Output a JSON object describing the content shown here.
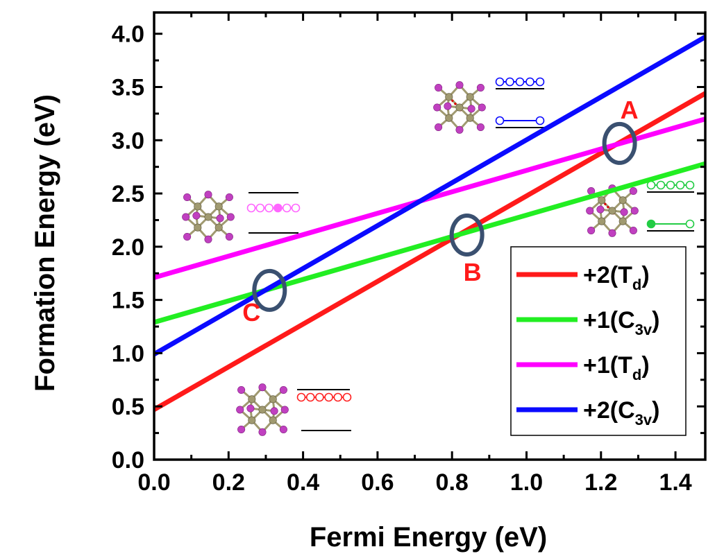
{
  "chart_data": {
    "type": "line",
    "title": "",
    "xlabel": "Fermi Energy (eV)",
    "ylabel": "Formation Energy (eV)",
    "xlim": [
      0.0,
      1.48
    ],
    "ylim": [
      0.0,
      4.2
    ],
    "xticks": [
      "0.0",
      "0.2",
      "0.4",
      "0.6",
      "0.8",
      "1.0",
      "1.2",
      "1.4"
    ],
    "yticks": [
      "0.0",
      "0.5",
      "1.0",
      "1.5",
      "2.0",
      "2.5",
      "3.0",
      "3.5",
      "4.0"
    ],
    "grid": false,
    "legend_position": "bottom-right",
    "series": [
      {
        "name": "+2(T",
        "subscript": "d",
        "suffix": ")",
        "color": "#ff1a1a",
        "x": [
          0.0,
          1.48
        ],
        "y": [
          0.47,
          3.44
        ]
      },
      {
        "name": "+1(C",
        "subscript": "3v",
        "suffix": ")",
        "color": "#22ee22",
        "x": [
          0.0,
          1.48
        ],
        "y": [
          1.29,
          2.78
        ]
      },
      {
        "name": "+1(T",
        "subscript": "d",
        "suffix": ")",
        "color": "#ff00ff",
        "x": [
          0.0,
          1.48
        ],
        "y": [
          1.71,
          3.2
        ]
      },
      {
        "name": "+2(C",
        "subscript": "3v",
        "suffix": ")",
        "color": "#0a0aff",
        "x": [
          0.0,
          1.48
        ],
        "y": [
          0.99,
          3.97
        ]
      }
    ],
    "annotations": [
      {
        "label": "A",
        "x": 1.25,
        "y": 2.97,
        "color": "#ff1a1a"
      },
      {
        "label": "B",
        "x": 0.84,
        "y": 2.11,
        "color": "#ff1a1a"
      },
      {
        "label": "C",
        "x": 0.31,
        "y": 1.59,
        "color": "#ff1a1a"
      }
    ],
    "marker_color": "#3a5070",
    "insets": [
      {
        "name": "inset-plus2-c3v",
        "level_color": "#0a0aff",
        "upper_circles": 5,
        "lower_circles": 2,
        "filled_index": -1,
        "broken_bond": true
      },
      {
        "name": "inset-plus1-c3v",
        "level_color": "#22cc44",
        "upper_circles": 5,
        "lower_circles": 2,
        "filled_index": 0,
        "broken_bond": true
      },
      {
        "name": "inset-plus1-td",
        "level_color": "#ff66ff",
        "upper_circles": 6,
        "lower_circles": 0,
        "filled_index": 3,
        "broken_bond": false
      },
      {
        "name": "inset-plus2-td",
        "level_color": "#ff2222",
        "upper_circles": 6,
        "lower_circles": 0,
        "filled_index": -1,
        "broken_bond": false
      }
    ],
    "atom_colors": {
      "host": "#a09a70",
      "ligand": "#c040c0"
    }
  }
}
